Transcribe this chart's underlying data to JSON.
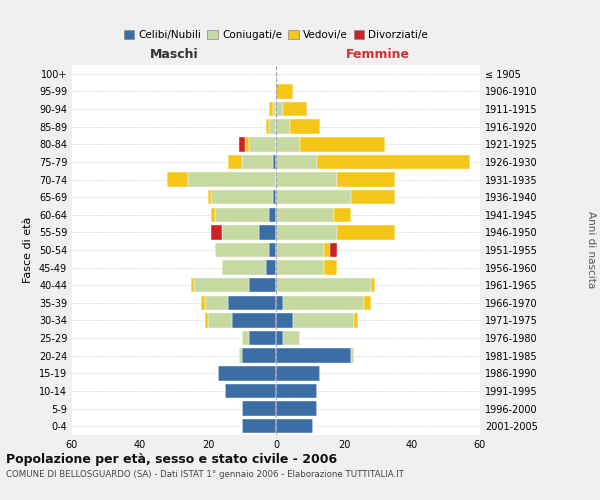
{
  "age_groups": [
    "0-4",
    "5-9",
    "10-14",
    "15-19",
    "20-24",
    "25-29",
    "30-34",
    "35-39",
    "40-44",
    "45-49",
    "50-54",
    "55-59",
    "60-64",
    "65-69",
    "70-74",
    "75-79",
    "80-84",
    "85-89",
    "90-94",
    "95-99",
    "100+"
  ],
  "birth_years": [
    "2001-2005",
    "1996-2000",
    "1991-1995",
    "1986-1990",
    "1981-1985",
    "1976-1980",
    "1971-1975",
    "1966-1970",
    "1961-1965",
    "1956-1960",
    "1951-1955",
    "1946-1950",
    "1941-1945",
    "1936-1940",
    "1931-1935",
    "1926-1930",
    "1921-1925",
    "1916-1920",
    "1911-1915",
    "1906-1910",
    "≤ 1905"
  ],
  "male": {
    "celibi": [
      10,
      10,
      15,
      17,
      10,
      8,
      13,
      14,
      8,
      3,
      2,
      5,
      2,
      1,
      0,
      1,
      0,
      0,
      0,
      0,
      0
    ],
    "coniugati": [
      0,
      0,
      0,
      0,
      1,
      2,
      7,
      7,
      16,
      13,
      16,
      11,
      16,
      18,
      26,
      9,
      8,
      2,
      1,
      0,
      0
    ],
    "vedovi": [
      0,
      0,
      0,
      0,
      0,
      0,
      1,
      1,
      1,
      0,
      0,
      0,
      1,
      1,
      6,
      4,
      1,
      1,
      1,
      0,
      0
    ],
    "divorziati": [
      0,
      0,
      0,
      0,
      0,
      0,
      0,
      0,
      0,
      0,
      0,
      3,
      0,
      0,
      0,
      0,
      2,
      0,
      0,
      0,
      0
    ]
  },
  "female": {
    "nubili": [
      11,
      12,
      12,
      13,
      22,
      2,
      5,
      2,
      0,
      0,
      0,
      0,
      0,
      0,
      0,
      0,
      0,
      0,
      0,
      0,
      0
    ],
    "coniugate": [
      0,
      0,
      0,
      0,
      1,
      5,
      18,
      24,
      28,
      14,
      14,
      18,
      17,
      22,
      18,
      12,
      7,
      4,
      2,
      0,
      0
    ],
    "vedove": [
      0,
      0,
      0,
      0,
      0,
      0,
      1,
      2,
      1,
      4,
      2,
      17,
      5,
      13,
      17,
      45,
      25,
      9,
      7,
      5,
      0
    ],
    "divorziate": [
      0,
      0,
      0,
      0,
      0,
      0,
      0,
      0,
      0,
      0,
      2,
      0,
      0,
      0,
      0,
      0,
      0,
      0,
      0,
      0,
      0
    ]
  },
  "colors": {
    "celibi_nubili": "#3a6ea5",
    "coniugati": "#c5d9a0",
    "vedovi": "#f5c518",
    "divorziati": "#cc2222"
  },
  "xlim": 60,
  "title": "Popolazione per età, sesso e stato civile - 2006",
  "subtitle": "COMUNE DI BELLOSGUARDO (SA) - Dati ISTAT 1° gennaio 2006 - Elaborazione TUTTITALIA.IT",
  "ylabel": "Fasce di età",
  "ylabel_right": "Anni di nascita",
  "xlabel_left": "Maschi",
  "xlabel_right": "Femmine",
  "bg_color": "#f0f0f0",
  "bar_bg_color": "#ffffff"
}
